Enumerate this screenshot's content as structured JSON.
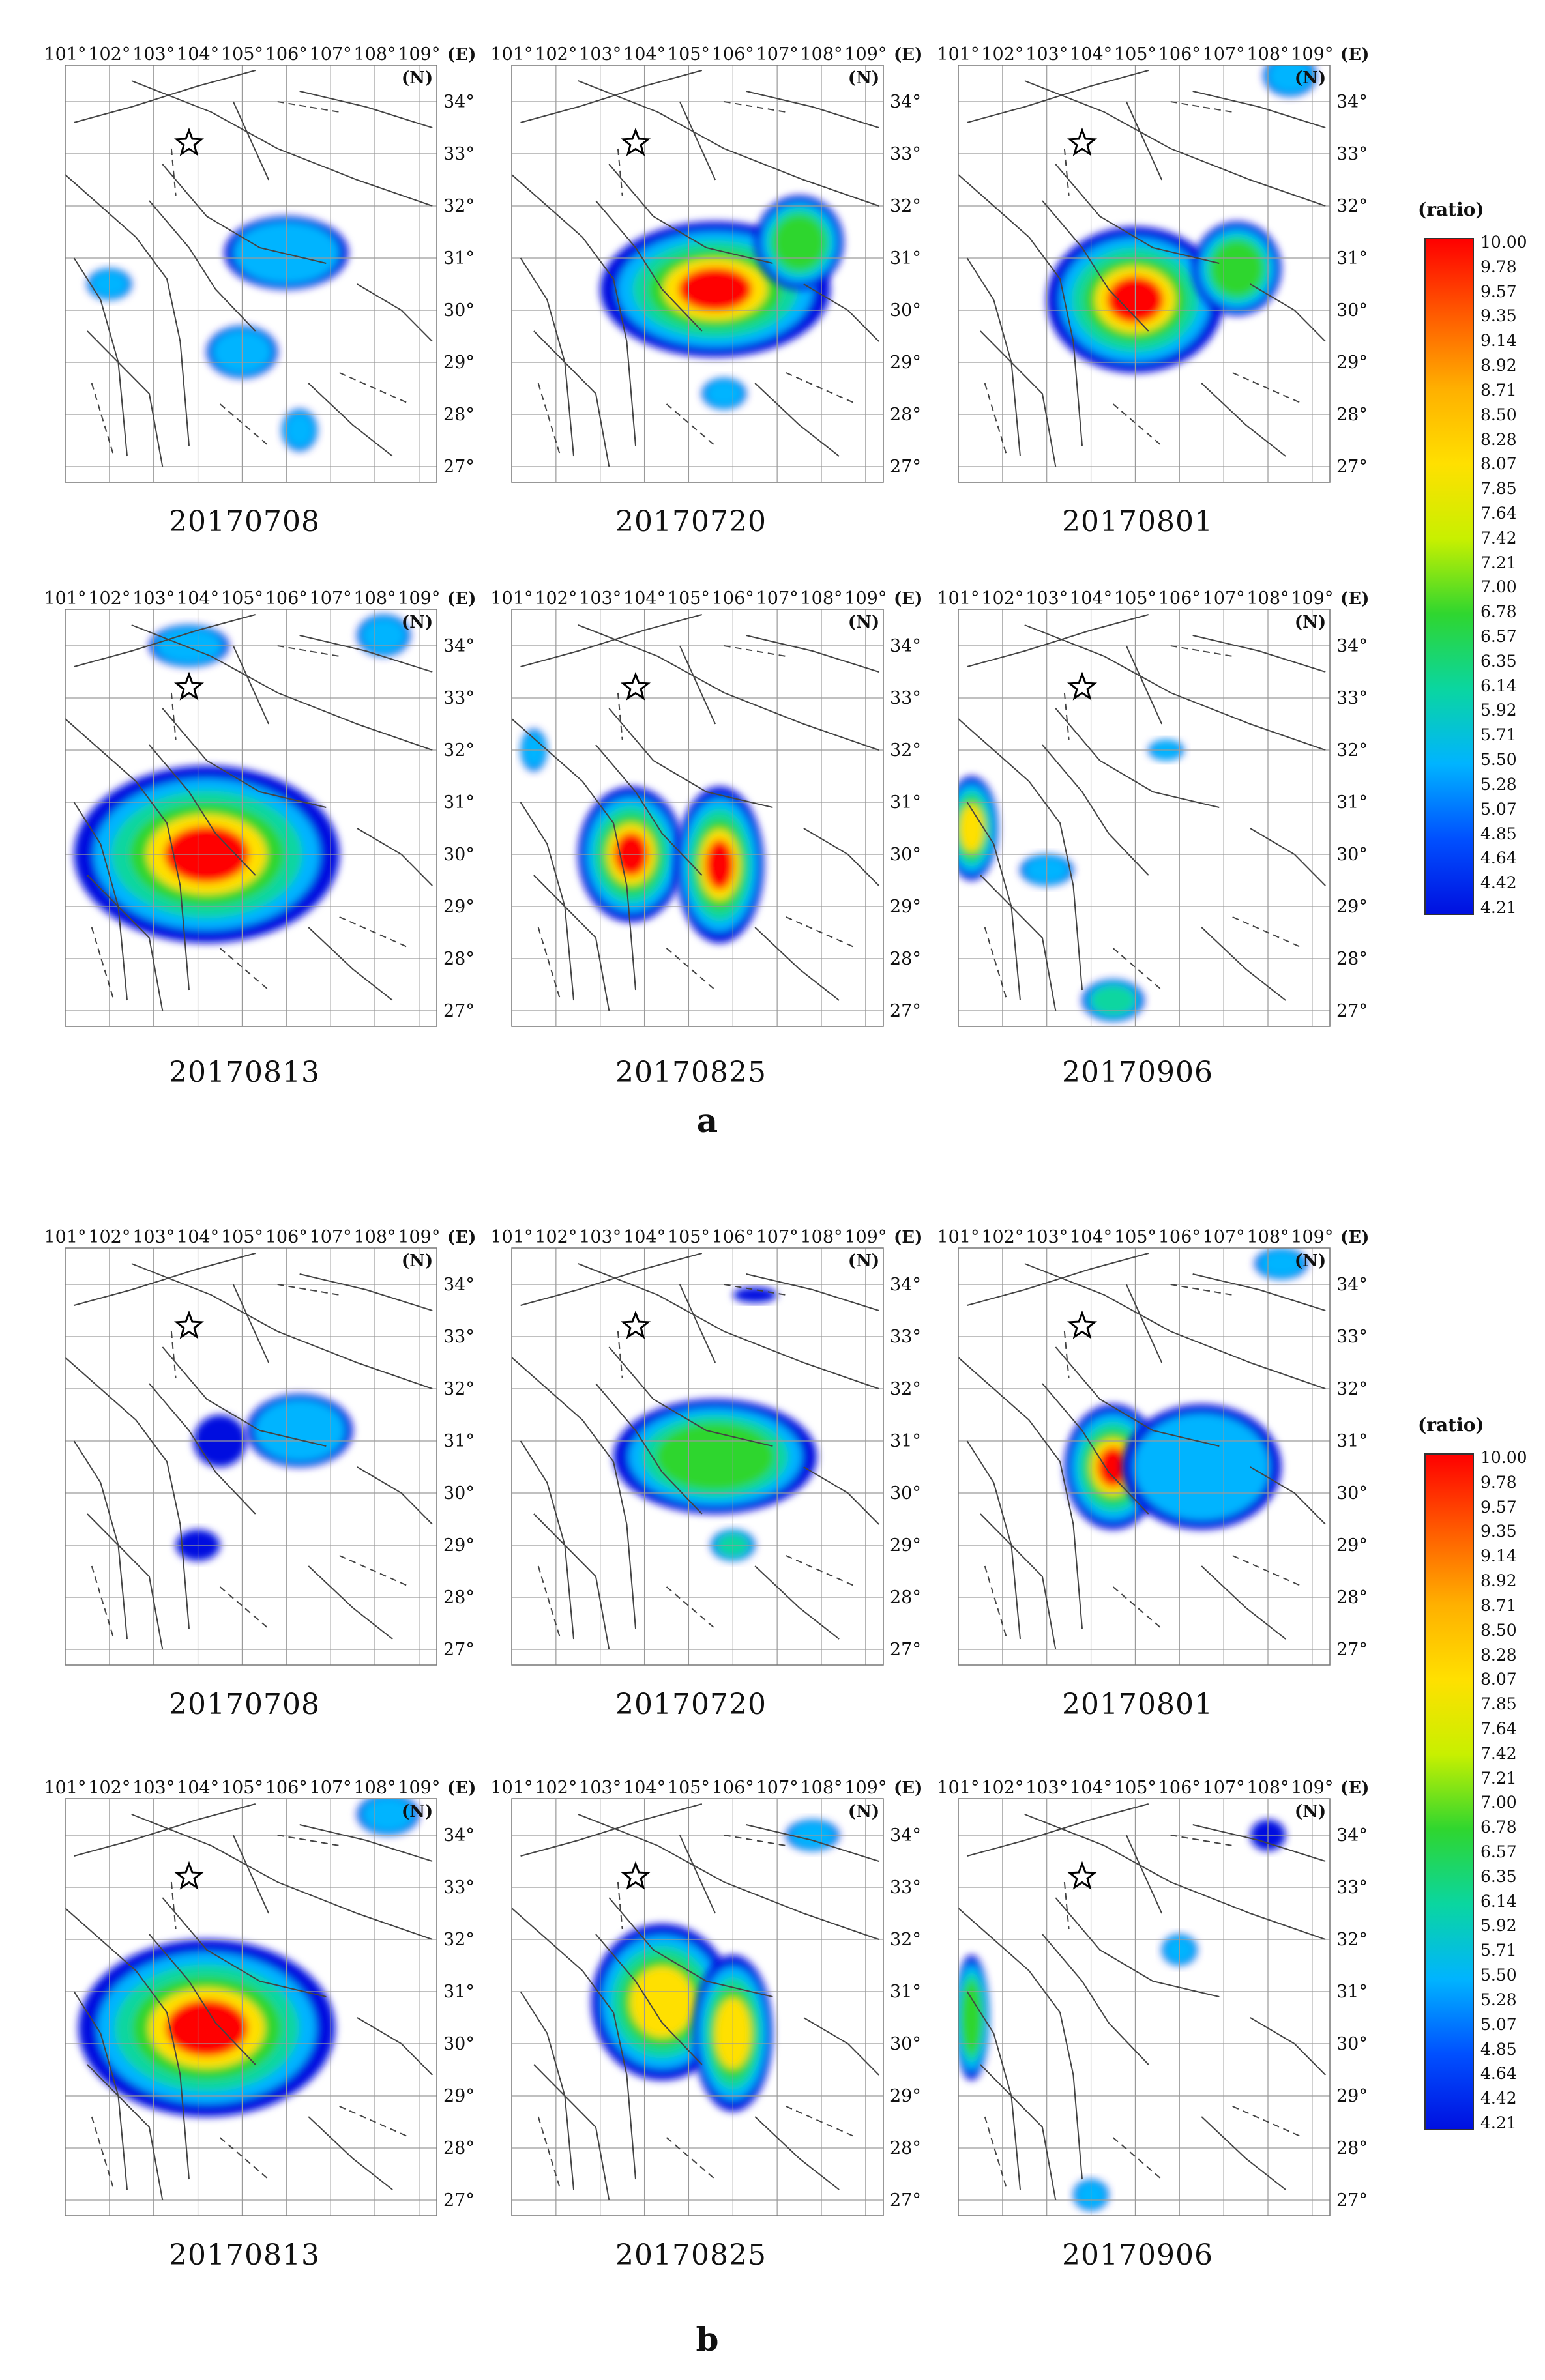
{
  "chart_data": {
    "type": "heatmap",
    "x_axis": {
      "labels": [
        "101°",
        "102°",
        "103°",
        "104°",
        "105°",
        "106°",
        "107°",
        "108°",
        "109°"
      ],
      "unit": "(E)"
    },
    "y_axis": {
      "labels": [
        "34°",
        "33°",
        "32°",
        "31°",
        "30°",
        "29°",
        "28°",
        "27°"
      ],
      "unit": "(N)"
    },
    "legend": {
      "title": "(ratio)",
      "ticks": [
        "10.00",
        "9.78",
        "9.57",
        "9.35",
        "9.14",
        "8.92",
        "8.71",
        "8.50",
        "8.28",
        "8.07",
        "7.85",
        "7.64",
        "7.42",
        "7.21",
        "7.00",
        "6.78",
        "6.57",
        "6.35",
        "6.14",
        "5.92",
        "5.71",
        "5.50",
        "5.28",
        "5.07",
        "4.85",
        "4.64",
        "4.42",
        "4.21"
      ],
      "colors": [
        "#ff0000",
        "#ff5a00",
        "#ffb000",
        "#ffe000",
        "#c8f000",
        "#2fd62f",
        "#0ad6a0",
        "#00b4ff",
        "#0050ff",
        "#0010e0"
      ]
    },
    "groups": [
      {
        "label": "a",
        "panels": [
          {
            "date": "20170708",
            "blobs": [
              {
                "lon": 106.0,
                "lat": 31.1,
                "rx": 1.4,
                "ry": 0.7,
                "level": 0.35
              },
              {
                "lon": 105.0,
                "lat": 29.2,
                "rx": 0.8,
                "ry": 0.5,
                "level": 0.3
              },
              {
                "lon": 102.0,
                "lat": 30.5,
                "rx": 0.5,
                "ry": 0.3,
                "level": 0.25
              },
              {
                "lon": 106.3,
                "lat": 27.7,
                "rx": 0.4,
                "ry": 0.4,
                "level": 0.3
              }
            ]
          },
          {
            "date": "20170720",
            "blobs": [
              {
                "lon": 105.6,
                "lat": 30.4,
                "rx": 2.6,
                "ry": 1.3,
                "level": 1.0
              },
              {
                "lon": 107.5,
                "lat": 31.3,
                "rx": 1.0,
                "ry": 0.9,
                "level": 0.7
              },
              {
                "lon": 105.8,
                "lat": 28.4,
                "rx": 0.5,
                "ry": 0.3,
                "level": 0.3
              }
            ]
          },
          {
            "date": "20170801",
            "blobs": [
              {
                "lon": 105.0,
                "lat": 30.2,
                "rx": 2.0,
                "ry": 1.4,
                "level": 1.0
              },
              {
                "lon": 107.3,
                "lat": 30.8,
                "rx": 1.0,
                "ry": 0.9,
                "level": 0.6
              },
              {
                "lon": 108.5,
                "lat": 34.5,
                "rx": 0.6,
                "ry": 0.4,
                "level": 0.3
              }
            ]
          },
          {
            "date": "20170813",
            "blobs": [
              {
                "lon": 104.2,
                "lat": 30.0,
                "rx": 3.0,
                "ry": 1.7,
                "level": 1.0
              },
              {
                "lon": 103.8,
                "lat": 34.0,
                "rx": 0.9,
                "ry": 0.4,
                "level": 0.3
              },
              {
                "lon": 108.2,
                "lat": 34.2,
                "rx": 0.6,
                "ry": 0.4,
                "level": 0.4
              }
            ]
          },
          {
            "date": "20170825",
            "blobs": [
              {
                "lon": 103.7,
                "lat": 30.0,
                "rx": 1.2,
                "ry": 1.3,
                "level": 1.0
              },
              {
                "lon": 105.7,
                "lat": 29.8,
                "rx": 1.0,
                "ry": 1.5,
                "level": 1.0
              },
              {
                "lon": 101.5,
                "lat": 32.0,
                "rx": 0.3,
                "ry": 0.4,
                "level": 0.3
              }
            ]
          },
          {
            "date": "20170906",
            "blobs": [
              {
                "lon": 101.3,
                "lat": 30.5,
                "rx": 0.6,
                "ry": 1.0,
                "level": 0.9
              },
              {
                "lon": 103.0,
                "lat": 29.7,
                "rx": 0.6,
                "ry": 0.3,
                "level": 0.4
              },
              {
                "lon": 104.5,
                "lat": 27.2,
                "rx": 0.7,
                "ry": 0.4,
                "level": 0.45
              },
              {
                "lon": 105.7,
                "lat": 32.0,
                "rx": 0.4,
                "ry": 0.2,
                "level": 0.3
              }
            ]
          }
        ]
      },
      {
        "label": "b",
        "panels": [
          {
            "date": "20170708",
            "blobs": [
              {
                "lon": 106.3,
                "lat": 31.2,
                "rx": 1.2,
                "ry": 0.7,
                "level": 0.25
              },
              {
                "lon": 104.5,
                "lat": 31.0,
                "rx": 0.6,
                "ry": 0.5,
                "level": 0.2
              },
              {
                "lon": 104.0,
                "lat": 29.0,
                "rx": 0.5,
                "ry": 0.3,
                "level": 0.2
              }
            ]
          },
          {
            "date": "20170720",
            "blobs": [
              {
                "lon": 105.6,
                "lat": 30.7,
                "rx": 2.3,
                "ry": 1.1,
                "level": 0.6
              },
              {
                "lon": 106.0,
                "lat": 29.0,
                "rx": 0.5,
                "ry": 0.3,
                "level": 0.5
              },
              {
                "lon": 106.5,
                "lat": 33.8,
                "rx": 0.5,
                "ry": 0.15,
                "level": 0.2
              }
            ]
          },
          {
            "date": "20170801",
            "blobs": [
              {
                "lon": 104.5,
                "lat": 30.5,
                "rx": 1.1,
                "ry": 1.2,
                "level": 1.0
              },
              {
                "lon": 106.5,
                "lat": 30.5,
                "rx": 1.8,
                "ry": 1.2,
                "level": 0.35
              },
              {
                "lon": 108.3,
                "lat": 34.4,
                "rx": 0.6,
                "ry": 0.3,
                "level": 0.3
              }
            ]
          },
          {
            "date": "20170813",
            "blobs": [
              {
                "lon": 104.2,
                "lat": 30.3,
                "rx": 2.9,
                "ry": 1.7,
                "level": 1.0
              },
              {
                "lon": 108.3,
                "lat": 34.4,
                "rx": 0.7,
                "ry": 0.4,
                "level": 0.4
              }
            ]
          },
          {
            "date": "20170825",
            "blobs": [
              {
                "lon": 104.4,
                "lat": 30.8,
                "rx": 1.6,
                "ry": 1.5,
                "level": 0.9
              },
              {
                "lon": 106.0,
                "lat": 30.2,
                "rx": 0.9,
                "ry": 1.5,
                "level": 0.8
              },
              {
                "lon": 107.8,
                "lat": 34.0,
                "rx": 0.6,
                "ry": 0.3,
                "level": 0.25
              }
            ]
          },
          {
            "date": "20170906",
            "blobs": [
              {
                "lon": 101.3,
                "lat": 30.5,
                "rx": 0.4,
                "ry": 1.2,
                "level": 0.6
              },
              {
                "lon": 104.0,
                "lat": 27.1,
                "rx": 0.4,
                "ry": 0.3,
                "level": 0.3
              },
              {
                "lon": 106.0,
                "lat": 31.8,
                "rx": 0.4,
                "ry": 0.3,
                "level": 0.25
              },
              {
                "lon": 108.0,
                "lat": 34.0,
                "rx": 0.4,
                "ry": 0.3,
                "level": 0.2
              }
            ]
          }
        ]
      }
    ],
    "epicenter": {
      "lon": 103.8,
      "lat": 33.2
    }
  }
}
